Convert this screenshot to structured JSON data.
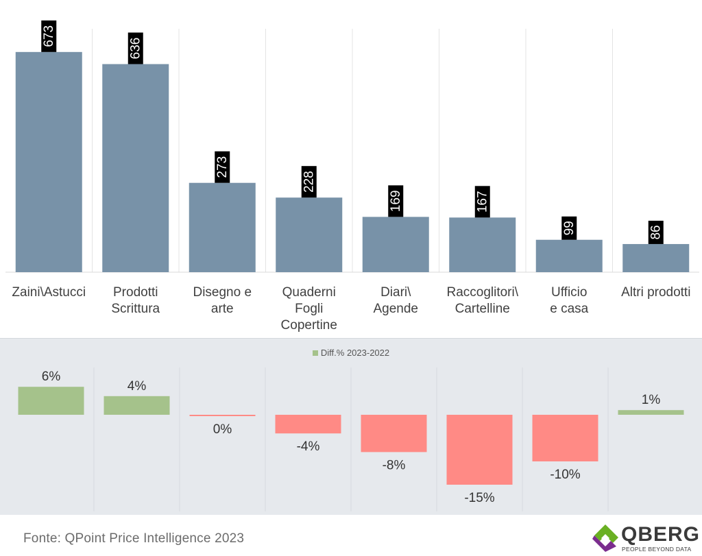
{
  "chart_data": [
    {
      "type": "bar",
      "categories": [
        [
          "Zaini\\Astucci"
        ],
        [
          "Prodotti",
          "Scrittura"
        ],
        [
          "Disegno e",
          "arte"
        ],
        [
          "Quaderni",
          "Fogli",
          "Copertine"
        ],
        [
          "Diari\\",
          "Agende"
        ],
        [
          "Raccoglitori\\",
          "Cartelline"
        ],
        [
          "Ufficio",
          "e casa"
        ],
        [
          "Altri prodotti"
        ]
      ],
      "values": [
        673,
        636,
        273,
        228,
        169,
        167,
        99,
        86
      ],
      "ylim": [
        0,
        790
      ],
      "grid": "vertical separators",
      "bar_color": "#7892a8",
      "label_bg": "#000000",
      "label_color": "#ffffff"
    },
    {
      "type": "bar",
      "legend": "Diff.% 2023-2022",
      "legend_position": "top-center",
      "categories": [
        "Zaini\\Astucci",
        "Prodotti Scrittura",
        "Disegno e arte",
        "Quaderni Fogli Copertine",
        "Diari\\ Agende",
        "Raccoglitori\\ Cartelline",
        "Ufficio e casa",
        "Altri prodotti"
      ],
      "values": [
        6,
        4,
        0,
        -4,
        -8,
        -15,
        -10,
        1
      ],
      "value_labels": [
        "6%",
        "4%",
        "0%",
        "-4%",
        "-8%",
        "-15%",
        "-10%",
        "1%"
      ],
      "ylim": [
        -17,
        8
      ],
      "positive_color": "#a5c28b",
      "negative_color": "#ff8a85"
    }
  ],
  "footer": {
    "source": "Fonte: QPoint Price Intelligence 2023"
  },
  "logo": {
    "name": "QBERG",
    "tagline": "PEOPLE BEYOND DATA",
    "colors": [
      "#6ab023",
      "#7b2d8e"
    ]
  }
}
